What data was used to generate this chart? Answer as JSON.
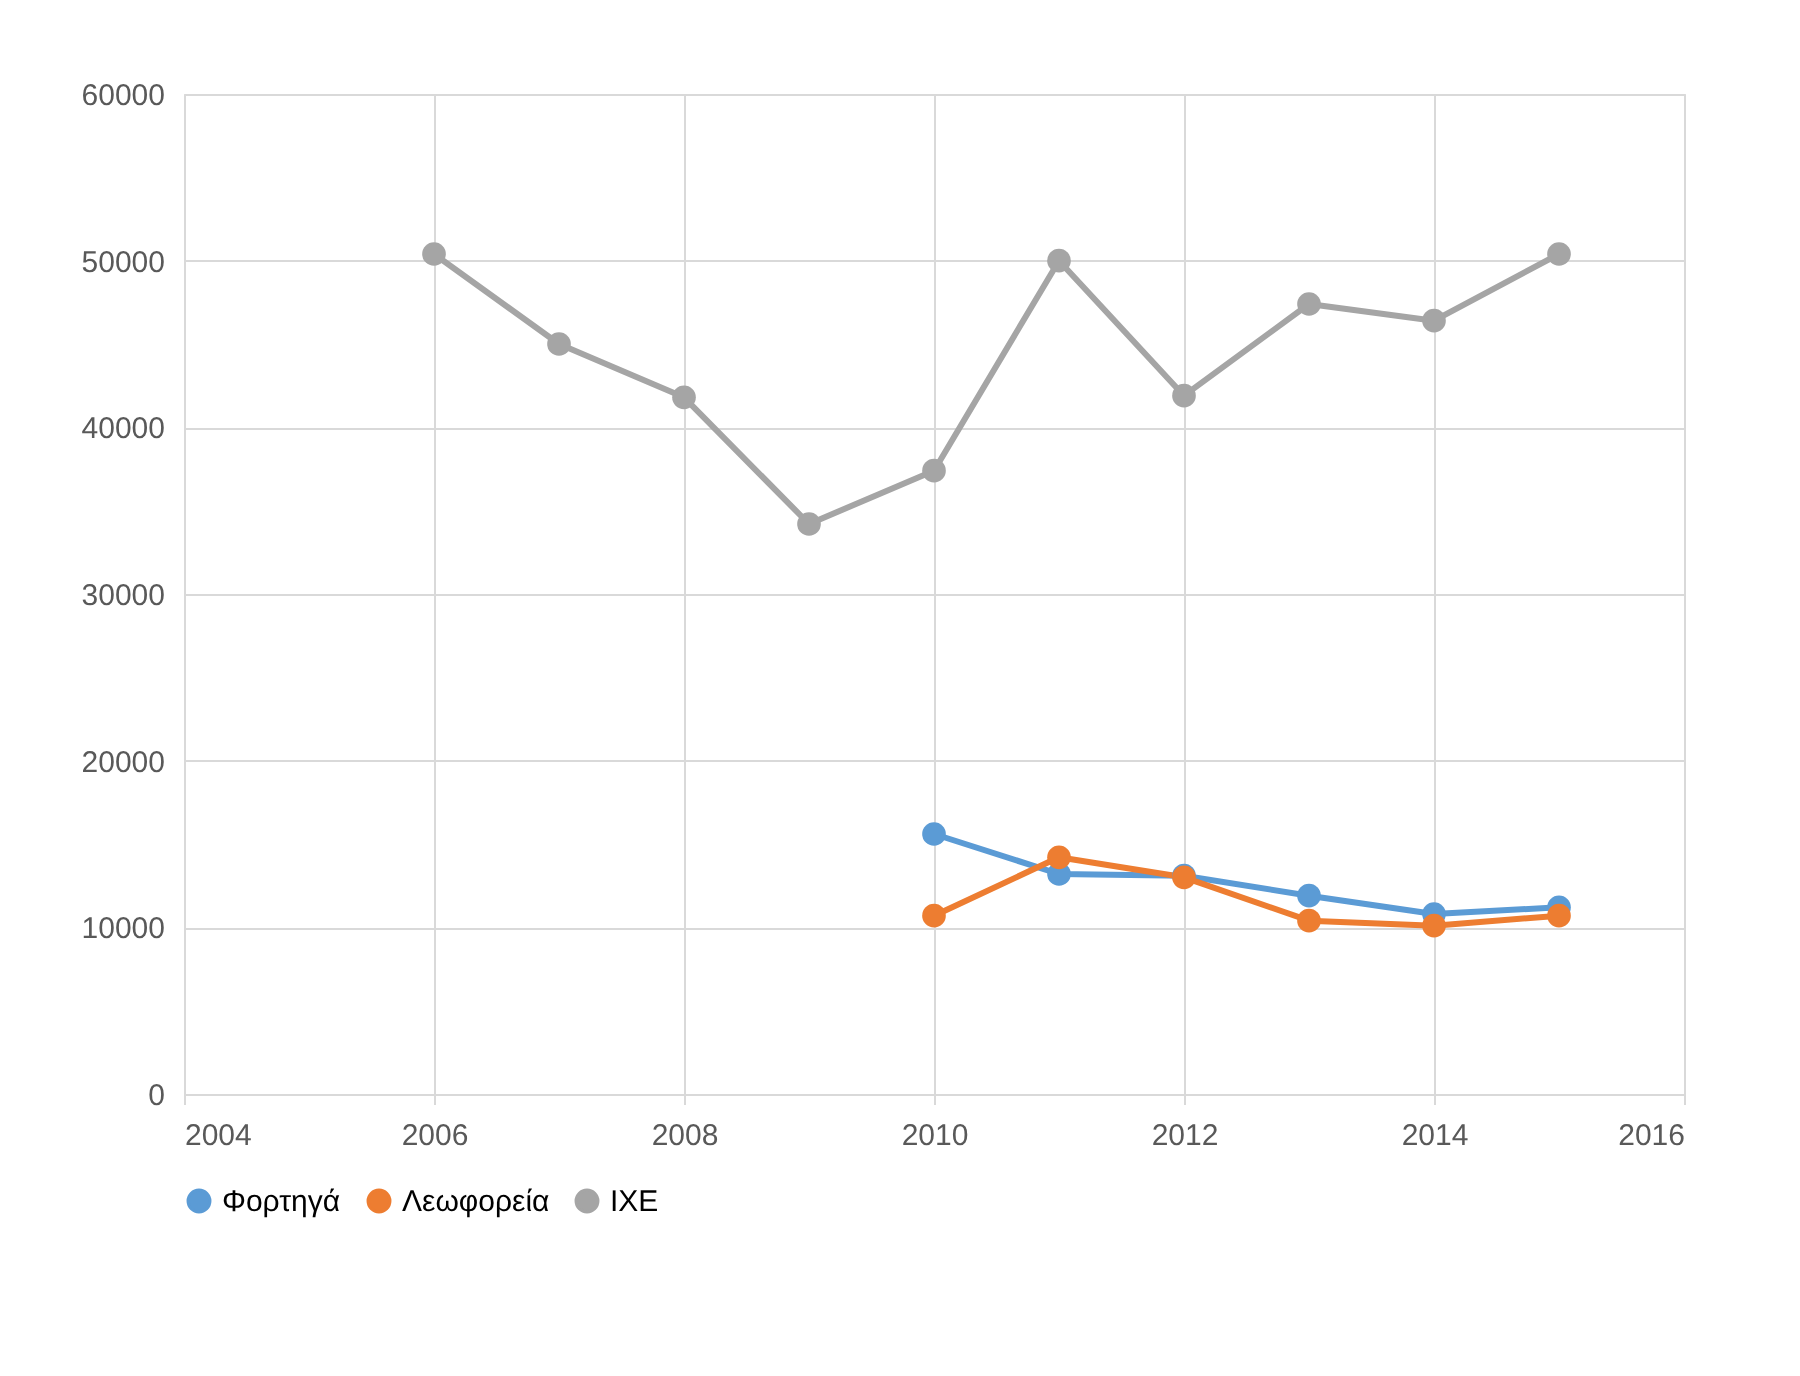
{
  "chart_data": {
    "type": "line",
    "x": [
      2006,
      2007,
      2008,
      2009,
      2010,
      2011,
      2012,
      2013,
      2014,
      2015
    ],
    "series": [
      {
        "name": "Φορτηγά",
        "color": "#5b9bd5",
        "values": [
          null,
          null,
          null,
          null,
          15600,
          13200,
          13100,
          11900,
          10800,
          11200
        ]
      },
      {
        "name": "Λεωφορεία",
        "color": "#ed7d31",
        "values": [
          null,
          null,
          null,
          null,
          10700,
          14200,
          13000,
          10400,
          10100,
          10700
        ]
      },
      {
        "name": "ΙΧΕ",
        "color": "#a5a5a5",
        "values": [
          50400,
          45000,
          41800,
          34200,
          37400,
          50000,
          41900,
          47400,
          46400,
          50400
        ]
      }
    ],
    "xlim": [
      2004,
      2016
    ],
    "xticks": [
      2004,
      2006,
      2008,
      2010,
      2012,
      2014,
      2016
    ],
    "ylim": [
      0,
      60000
    ],
    "yticks": [
      0,
      10000,
      20000,
      30000,
      40000,
      50000,
      60000
    ],
    "grid": true,
    "legend": "bottom",
    "marker": "circle",
    "line_style": "solid"
  }
}
